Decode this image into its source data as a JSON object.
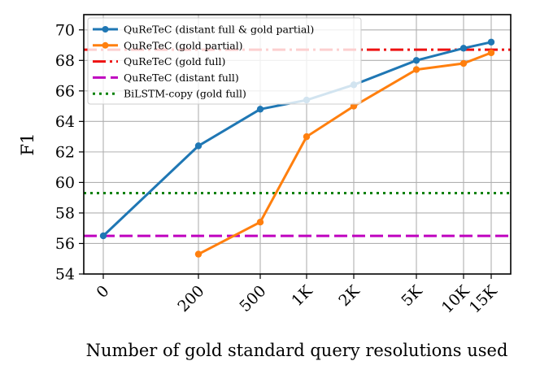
{
  "chart_data": {
    "type": "line",
    "xlabel": "Number of gold standard query resolutions used",
    "ylabel": "F1",
    "x_ticks": [
      "0",
      "200",
      "500",
      "1K",
      "2K",
      "5K",
      "10K",
      "15K"
    ],
    "x_values": [
      0,
      200,
      500,
      1000,
      2000,
      5000,
      10000,
      15000
    ],
    "y_ticks": [
      54,
      56,
      58,
      60,
      62,
      64,
      66,
      68,
      70
    ],
    "ylim": [
      54,
      71
    ],
    "grid": true,
    "legend_position": "top-left",
    "series": [
      {
        "name": "QuReTeC (distant full & gold partial)",
        "kind": "line-marker",
        "color": "#1f77b4",
        "points": [
          [
            0,
            56.5
          ],
          [
            200,
            62.4
          ],
          [
            500,
            64.8
          ],
          [
            1000,
            65.4
          ],
          [
            2000,
            66.4
          ],
          [
            5000,
            68.0
          ],
          [
            10000,
            68.8
          ],
          [
            15000,
            69.2
          ]
        ]
      },
      {
        "name": "QuReTeC (gold partial)",
        "kind": "line-marker",
        "color": "#ff7f0e",
        "points": [
          [
            200,
            55.3
          ],
          [
            500,
            57.4
          ],
          [
            1000,
            63.0
          ],
          [
            2000,
            65.0
          ],
          [
            5000,
            67.4
          ],
          [
            10000,
            67.8
          ],
          [
            15000,
            68.5
          ]
        ]
      },
      {
        "name": "QuReTeC (gold full)",
        "kind": "hline",
        "style": "dashdot",
        "color": "#ee1111",
        "y": 68.7
      },
      {
        "name": "QuReTeC (distant full)",
        "kind": "hline",
        "style": "dashed",
        "color": "#bf00bf",
        "y": 56.5
      },
      {
        "name": "BiLSTM-copy (gold full)",
        "kind": "hline",
        "style": "dotted",
        "color": "#008000",
        "y": 59.3
      }
    ]
  }
}
